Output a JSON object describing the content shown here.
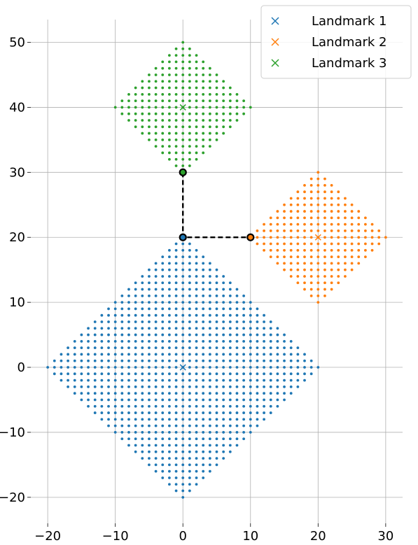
{
  "chart_data": {
    "type": "scatter",
    "title": "",
    "xlabel": "",
    "ylabel": "",
    "xlim": [
      -22.5,
      32.5
    ],
    "ylim": [
      -24,
      53.5
    ],
    "xticks": [
      -20,
      -10,
      0,
      10,
      20,
      30
    ],
    "yticks": [
      -20,
      -10,
      0,
      10,
      20,
      30,
      40,
      50
    ],
    "grid": true,
    "legend_position": "top-right",
    "series": [
      {
        "name": "Landmark 1",
        "color": "#1f77b4",
        "landmark": [
          0,
          0
        ],
        "radius": 20,
        "step": 1
      },
      {
        "name": "Landmark 2",
        "color": "#ff7f0e",
        "landmark": [
          20,
          20
        ],
        "radius": 10,
        "step": 1
      },
      {
        "name": "Landmark 3",
        "color": "#2ca02c",
        "landmark": [
          0,
          40
        ],
        "radius": 10,
        "step": 1
      }
    ],
    "path": {
      "color": "#000000",
      "style": "dashed",
      "points": [
        [
          0,
          30
        ],
        [
          0,
          20
        ],
        [
          10,
          20
        ]
      ],
      "highlighted": [
        {
          "point": [
            0,
            30
          ],
          "fill": "#2ca02c"
        },
        {
          "point": [
            0,
            20
          ],
          "fill": "#1f77b4"
        },
        {
          "point": [
            10,
            20
          ],
          "fill": "#ff7f0e"
        }
      ]
    }
  }
}
